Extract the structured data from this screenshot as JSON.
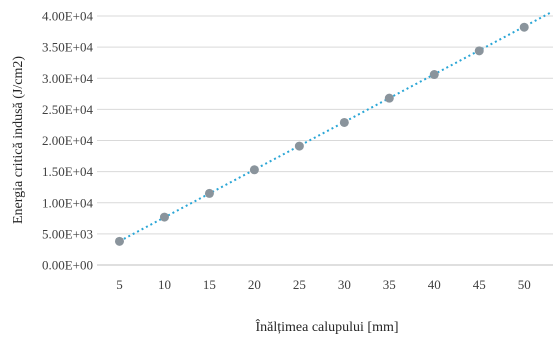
{
  "chart_data": {
    "type": "scatter",
    "title": "",
    "xlabel": "Înălțimea calupului [mm]",
    "ylabel": "Energia critică indusă (J/cm2)",
    "x": [
      5,
      10,
      15,
      20,
      25,
      30,
      35,
      40,
      45,
      50
    ],
    "series": [
      {
        "values": [
          3800,
          7700,
          11500,
          15300,
          19100,
          22900,
          26800,
          30600,
          34400,
          38200
        ],
        "marker_color": "#8a949c"
      }
    ],
    "trendline": {
      "style": "dotted",
      "color": "#2aa6d6",
      "x_range": [
        5,
        53
      ],
      "y_range": [
        3820,
        40600
      ]
    },
    "x_tick_labels": [
      "5",
      "10",
      "15",
      "20",
      "25",
      "30",
      "35",
      "40",
      "45",
      "50"
    ],
    "y_tick_labels": [
      "0.00E+00",
      "5.00E+03",
      "1.00E+04",
      "1.50E+04",
      "2.00E+04",
      "2.50E+04",
      "3.00E+04",
      "3.50E+04",
      "4.00E+04"
    ],
    "y_ticks": [
      0,
      5000,
      10000,
      15000,
      20000,
      25000,
      30000,
      35000,
      40000
    ],
    "xlim": [
      2.5,
      53.2
    ],
    "ylim": [
      0,
      40000
    ],
    "grid": "horizontal",
    "legend": "none"
  }
}
